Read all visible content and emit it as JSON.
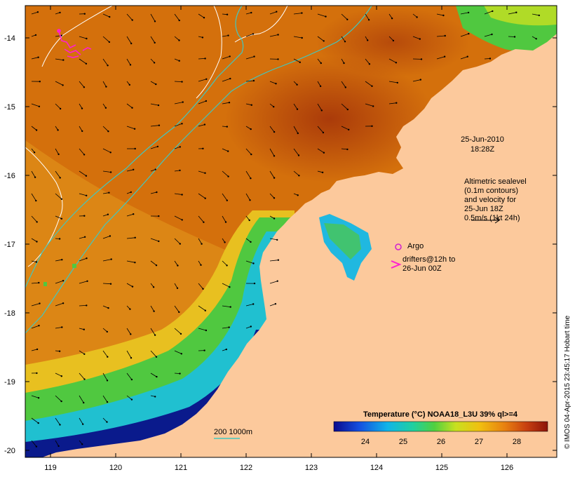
{
  "axes": {
    "x_ticks": [
      "119",
      "120",
      "121",
      "122",
      "123",
      "124",
      "125",
      "126"
    ],
    "y_ticks": [
      "-14",
      "-15",
      "-16",
      "-17",
      "-18",
      "-19",
      "-20"
    ]
  },
  "annotations": {
    "datetime_line1": "25-Jun-2010",
    "datetime_line2": "18:28Z",
    "altimetry_lines": [
      "Altimetric sealevel",
      "(0.1m contours)",
      "and velocity for",
      "25-Jun 18Z",
      "0.5m/s (1kt 24h)"
    ],
    "argo_label": "Argo",
    "drifters_line1": "drifters@12h to",
    "drifters_line2": "26-Jun 00Z",
    "isobath_label": "200  1000m"
  },
  "colorbar": {
    "title": "Temperature (°C) NOAA18_L3U 39% ql>=4",
    "ticks": [
      "24",
      "25",
      "26",
      "27",
      "28"
    ]
  },
  "credit": "© IMOS 04-Apr-2015 23:45:17 Hobart time",
  "colors": {
    "land": "#fcc99c",
    "sst_warm": "#d86f0a",
    "sst_hot": "#b4410a",
    "sst_mid": "#e6a21a",
    "sst_cool": "#5ac840",
    "sst_cold": "#0a1a8c",
    "argo": "#d020d0",
    "drifter": "#ff20d0",
    "isobath": "#40c8c0"
  }
}
